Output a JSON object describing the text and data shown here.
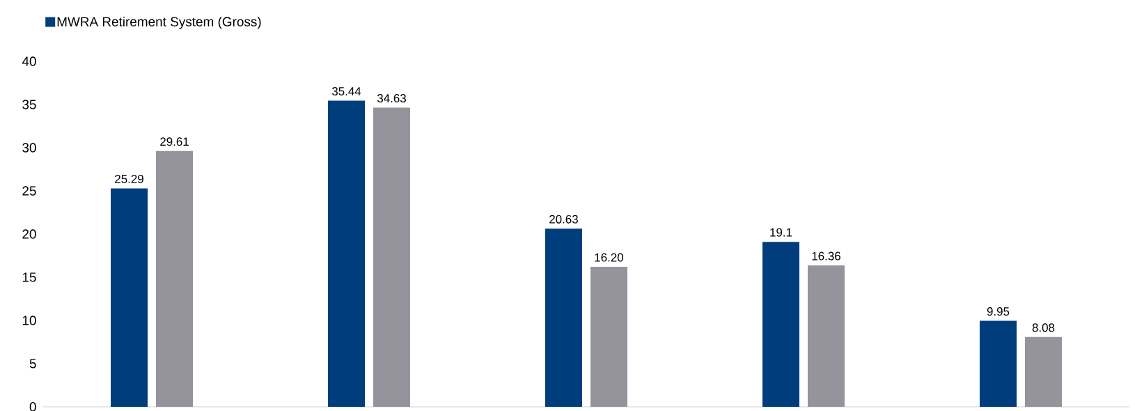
{
  "chart_data": {
    "type": "bar",
    "categories": [
      null,
      null,
      null,
      null,
      null
    ],
    "series": [
      {
        "name": "MWRA Retirement System (Gross)",
        "color": "#003d7c",
        "values": [
          25.29,
          35.44,
          20.63,
          19.1,
          9.95
        ],
        "value_labels": [
          "25.29",
          "35.44",
          "20.63",
          "19.1",
          "9.95"
        ]
      },
      {
        "color": "#95949c",
        "values": [
          29.61,
          34.63,
          16.2,
          16.36,
          8.08
        ],
        "value_labels": [
          "29.61",
          "34.63",
          "16.20",
          "16.36",
          "8.08"
        ]
      }
    ],
    "ylim": [
      0,
      40
    ],
    "yticks": [
      0,
      5,
      10,
      15,
      20,
      25,
      30,
      35,
      40
    ],
    "grid": false,
    "legend": "top left"
  }
}
